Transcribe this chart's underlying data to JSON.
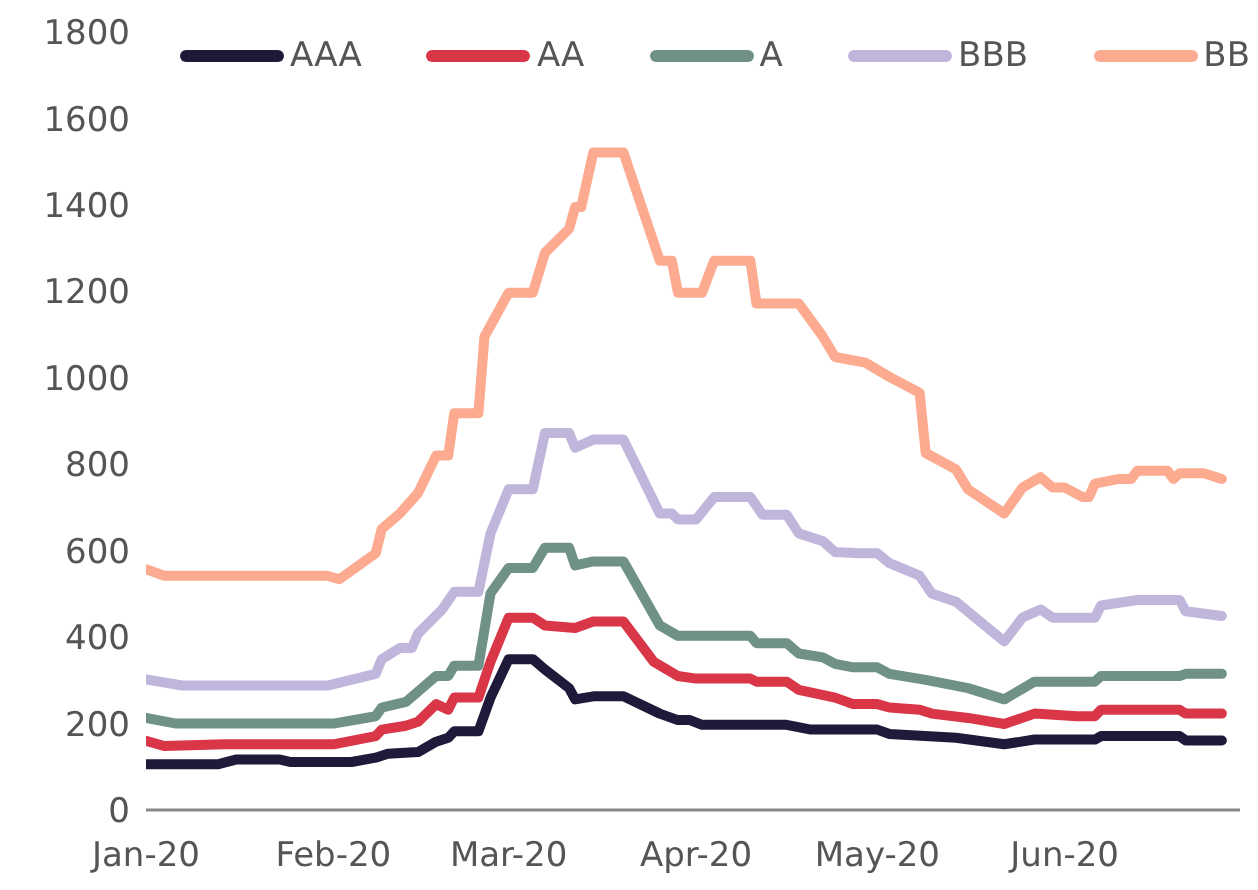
{
  "chart_data": {
    "type": "line",
    "xlim": [
      "2020-01-01",
      "2020-06-30"
    ],
    "xticks": [
      {
        "value": "2020-01-01",
        "label": "Jan-20"
      },
      {
        "value": "2020-02-01",
        "label": "Feb-20"
      },
      {
        "value": "2020-03-01",
        "label": "Mar-20"
      },
      {
        "value": "2020-04-01",
        "label": "Apr-20"
      },
      {
        "value": "2020-05-01",
        "label": "May-20"
      },
      {
        "value": "2020-06-01",
        "label": "Jun-20"
      }
    ],
    "ylim": [
      0,
      1800
    ],
    "yticks": [
      0,
      200,
      400,
      600,
      800,
      1000,
      1200,
      1400,
      1600,
      1800
    ],
    "grid": false,
    "legend": "top",
    "marker": "none",
    "line_style": "solid",
    "series": [
      {
        "name": "AAA",
        "color": "#1f1a3a",
        "x": [
          "2020-01-01",
          "2020-01-13",
          "2020-01-16",
          "2020-01-23",
          "2020-01-25",
          "2020-02-04",
          "2020-02-08",
          "2020-02-10",
          "2020-02-15",
          "2020-02-18",
          "2020-02-20",
          "2020-02-21",
          "2020-02-25",
          "2020-02-27",
          "2020-03-01",
          "2020-03-05",
          "2020-03-07",
          "2020-03-11",
          "2020-03-12",
          "2020-03-15",
          "2020-03-20",
          "2020-03-26",
          "2020-03-29",
          "2020-03-31",
          "2020-04-02",
          "2020-04-16",
          "2020-04-20",
          "2020-05-01",
          "2020-05-03",
          "2020-05-14",
          "2020-05-22",
          "2020-05-27",
          "2020-06-06",
          "2020-06-07",
          "2020-06-20",
          "2020-06-21",
          "2020-06-27"
        ],
        "values": [
          106,
          106,
          117,
          117,
          111,
          111,
          121,
          130,
          134,
          158,
          167,
          182,
          182,
          260,
          349,
          349,
          325,
          282,
          256,
          263,
          263,
          223,
          208,
          208,
          197,
          197,
          186,
          186,
          176,
          167,
          152,
          163,
          163,
          171,
          171,
          161,
          161
        ]
      },
      {
        "name": "AA",
        "color": "#d93648",
        "x": [
          "2020-01-01",
          "2020-01-04",
          "2020-01-14",
          "2020-02-01",
          "2020-02-08",
          "2020-02-09",
          "2020-02-13",
          "2020-02-15",
          "2020-02-18",
          "2020-02-20",
          "2020-02-21",
          "2020-02-25",
          "2020-02-27",
          "2020-03-01",
          "2020-03-05",
          "2020-03-07",
          "2020-03-12",
          "2020-03-15",
          "2020-03-20",
          "2020-03-25",
          "2020-03-29",
          "2020-04-01",
          "2020-04-10",
          "2020-04-11",
          "2020-04-16",
          "2020-04-18",
          "2020-04-24",
          "2020-04-27",
          "2020-05-01",
          "2020-05-03",
          "2020-05-08",
          "2020-05-10",
          "2020-05-16",
          "2020-05-22",
          "2020-05-27",
          "2020-06-03",
          "2020-06-06",
          "2020-06-07",
          "2020-06-20",
          "2020-06-21",
          "2020-06-27"
        ],
        "values": [
          160,
          148,
          152,
          152,
          171,
          186,
          195,
          204,
          245,
          232,
          260,
          260,
          343,
          445,
          445,
          427,
          421,
          436,
          436,
          343,
          310,
          304,
          304,
          297,
          297,
          278,
          260,
          245,
          245,
          237,
          232,
          223,
          213,
          199,
          223,
          217,
          217,
          232,
          232,
          223,
          223
        ]
      },
      {
        "name": "A",
        "color": "#6f9188",
        "x": [
          "2020-01-01",
          "2020-01-06",
          "2020-02-01",
          "2020-02-08",
          "2020-02-09",
          "2020-02-13",
          "2020-02-18",
          "2020-02-20",
          "2020-02-21",
          "2020-02-25",
          "2020-02-27",
          "2020-03-01",
          "2020-03-05",
          "2020-03-07",
          "2020-03-11",
          "2020-03-12",
          "2020-03-15",
          "2020-03-20",
          "2020-03-26",
          "2020-03-29",
          "2020-04-10",
          "2020-04-11",
          "2020-04-16",
          "2020-04-18",
          "2020-04-22",
          "2020-04-24",
          "2020-04-27",
          "2020-05-01",
          "2020-05-03",
          "2020-05-09",
          "2020-05-16",
          "2020-05-22",
          "2020-05-27",
          "2020-06-06",
          "2020-06-07",
          "2020-06-20",
          "2020-06-21",
          "2020-06-27"
        ],
        "values": [
          213,
          200,
          200,
          217,
          237,
          250,
          310,
          310,
          334,
          334,
          501,
          560,
          560,
          607,
          607,
          566,
          575,
          575,
          427,
          403,
          403,
          386,
          386,
          362,
          353,
          338,
          330,
          330,
          315,
          301,
          282,
          256,
          297,
          297,
          310,
          310,
          315,
          315
        ]
      },
      {
        "name": "BBB",
        "color": "#c0b6dc",
        "x": [
          "2020-01-01",
          "2020-01-07",
          "2020-01-31",
          "2020-02-08",
          "2020-02-09",
          "2020-02-12",
          "2020-02-14",
          "2020-02-15",
          "2020-02-19",
          "2020-02-21",
          "2020-02-25",
          "2020-02-27",
          "2020-03-01",
          "2020-03-05",
          "2020-03-07",
          "2020-03-11",
          "2020-03-12",
          "2020-03-15",
          "2020-03-20",
          "2020-03-26",
          "2020-03-28",
          "2020-03-29",
          "2020-04-01",
          "2020-04-04",
          "2020-04-10",
          "2020-04-12",
          "2020-04-16",
          "2020-04-18",
          "2020-04-22",
          "2020-04-24",
          "2020-04-28",
          "2020-05-01",
          "2020-05-03",
          "2020-05-08",
          "2020-05-10",
          "2020-05-14",
          "2020-05-18",
          "2020-05-22",
          "2020-05-25",
          "2020-05-28",
          "2020-05-30",
          "2020-06-06",
          "2020-06-07",
          "2020-06-13",
          "2020-06-20",
          "2020-06-21",
          "2020-06-27"
        ],
        "values": [
          302,
          288,
          288,
          315,
          349,
          375,
          375,
          408,
          464,
          505,
          505,
          640,
          742,
          742,
          872,
          872,
          838,
          857,
          857,
          686,
          686,
          672,
          672,
          724,
          724,
          683,
          683,
          640,
          622,
          597,
          594,
          594,
          571,
          542,
          501,
          482,
          436,
          390,
          445,
          464,
          445,
          445,
          473,
          486,
          486,
          460,
          449
        ]
      },
      {
        "name": "BB",
        "color": "#fcaa90",
        "x": [
          "2020-01-01",
          "2020-01-04",
          "2020-01-31",
          "2020-02-02",
          "2020-02-08",
          "2020-02-09",
          "2020-02-12",
          "2020-02-15",
          "2020-02-18",
          "2020-02-20",
          "2020-02-21",
          "2020-02-25",
          "2020-02-26",
          "2020-03-01",
          "2020-03-05",
          "2020-03-07",
          "2020-03-11",
          "2020-03-12",
          "2020-03-13",
          "2020-03-15",
          "2020-03-20",
          "2020-03-26",
          "2020-03-28",
          "2020-03-29",
          "2020-04-02",
          "2020-04-04",
          "2020-04-10",
          "2020-04-11",
          "2020-04-18",
          "2020-04-22",
          "2020-04-24",
          "2020-04-29",
          "2020-05-03",
          "2020-05-08",
          "2020-05-09",
          "2020-05-14",
          "2020-05-16",
          "2020-05-22",
          "2020-05-25",
          "2020-05-28",
          "2020-05-30",
          "2020-06-01",
          "2020-06-04",
          "2020-06-05",
          "2020-06-06",
          "2020-06-10",
          "2020-06-12",
          "2020-06-13",
          "2020-06-18",
          "2020-06-19",
          "2020-06-20",
          "2020-06-24",
          "2020-06-27"
        ],
        "values": [
          557,
          542,
          542,
          534,
          594,
          650,
          686,
          733,
          820,
          820,
          918,
          918,
          1095,
          1197,
          1197,
          1289,
          1345,
          1395,
          1395,
          1521,
          1521,
          1271,
          1271,
          1197,
          1197,
          1271,
          1271,
          1172,
          1172,
          1095,
          1048,
          1035,
          1002,
          965,
          826,
          788,
          742,
          686,
          746,
          770,
          746,
          746,
          724,
          724,
          755,
          766,
          766,
          785,
          785,
          766,
          779,
          779,
          766
        ]
      }
    ]
  }
}
